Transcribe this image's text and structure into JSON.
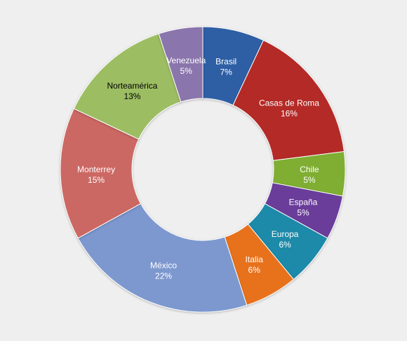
{
  "chart_data": {
    "type": "pie",
    "variant": "donut",
    "title": "",
    "legend": "none",
    "unit": "%",
    "categories": [
      "Brasil",
      "Casas de Roma",
      "Chile",
      "España",
      "Europa",
      "Italia",
      "México",
      "Monterrey",
      "Norteamérica",
      "Venezuela"
    ],
    "values": [
      7,
      16,
      5,
      5,
      6,
      6,
      22,
      15,
      13,
      5
    ],
    "labels": [
      "7%",
      "16%",
      "5%",
      "5%",
      "6%",
      "6%",
      "22%",
      "15%",
      "13%",
      "5%"
    ],
    "colors": [
      "#2f5fa5",
      "#b42b28",
      "#7fae30",
      "#6a3d9a",
      "#1f8aa8",
      "#e8721c",
      "#7d98cf",
      "#cc6763",
      "#9dbd63",
      "#8a74ac"
    ],
    "label_colors": [
      "#ffffff",
      "#ffffff",
      "#ffffff",
      "#ffffff",
      "#ffffff",
      "#ffffff",
      "#ffffff",
      "#ffffff",
      "#000000",
      "#ffffff"
    ]
  }
}
